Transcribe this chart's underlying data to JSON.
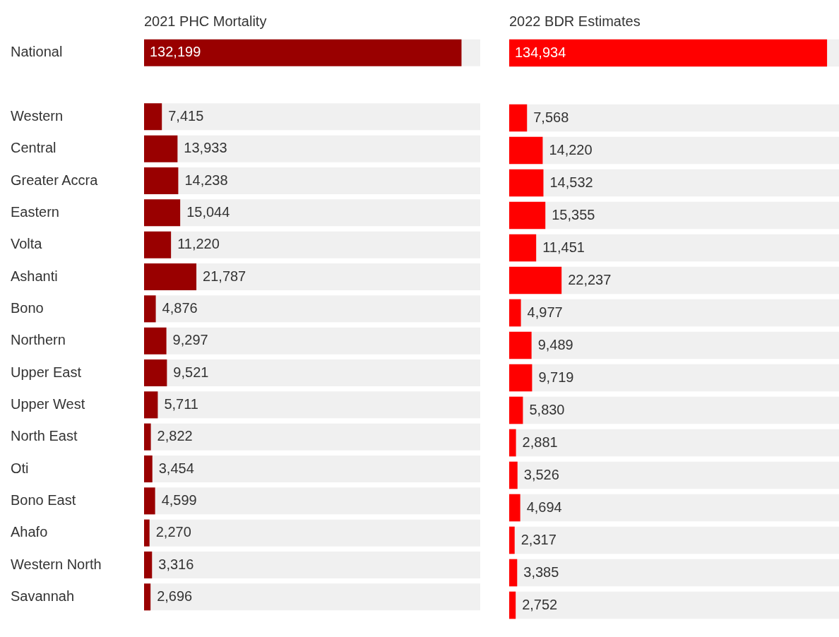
{
  "chart_data": [
    {
      "type": "bar",
      "orientation": "horizontal",
      "title": "2021 PHC Mortality",
      "tick_labels": "y",
      "categories": [
        "National",
        null,
        "Western",
        "Central",
        "Greater Accra",
        "Eastern",
        "Volta",
        "Ashanti",
        "Bono",
        "Northern",
        "Upper East",
        "Upper West",
        "North East",
        "Oti",
        "Bono East",
        "Ahafo",
        "Western North",
        "Savannah"
      ],
      "series": [
        {
          "color": "#990000",
          "values": [
            132199,
            null,
            7415,
            13933,
            14238,
            15044,
            11220,
            21787,
            4876,
            9297,
            9521,
            5711,
            2822,
            3454,
            4599,
            2270,
            3316,
            2696
          ],
          "value_labels": [
            "132,199",
            null,
            "7,415",
            "13,933",
            "14,238",
            "15,044",
            "11,220",
            "21,787",
            "4,876",
            "9,297",
            "9,521",
            "5,711",
            "2,822",
            "3,454",
            "4,599",
            "2,270",
            "3,316",
            "2,696"
          ]
        }
      ]
    },
    {
      "type": "bar",
      "orientation": "horizontal",
      "title": "2022 BDR Estimates",
      "tick_labels": false,
      "categories": [
        null,
        null,
        null,
        null,
        null,
        null,
        null,
        null,
        null,
        null,
        null,
        null,
        null,
        null,
        null,
        null,
        null,
        null
      ],
      "series": [
        {
          "color": "#ff0000",
          "values": [
            134934,
            null,
            7568,
            14220,
            14532,
            15355,
            11451,
            22237,
            4977,
            9489,
            9719,
            5830,
            2881,
            3526,
            4694,
            2317,
            3385,
            2752
          ],
          "value_labels": [
            "134,934",
            null,
            "7,568",
            "14,220",
            "14,532",
            "15,355",
            "11,451",
            "22,237",
            "4,977",
            "9,489",
            "9,719",
            "5,830",
            "2,881",
            "3,526",
            "4,694",
            "2,317",
            "3,385",
            "2,752"
          ]
        }
      ]
    }
  ]
}
